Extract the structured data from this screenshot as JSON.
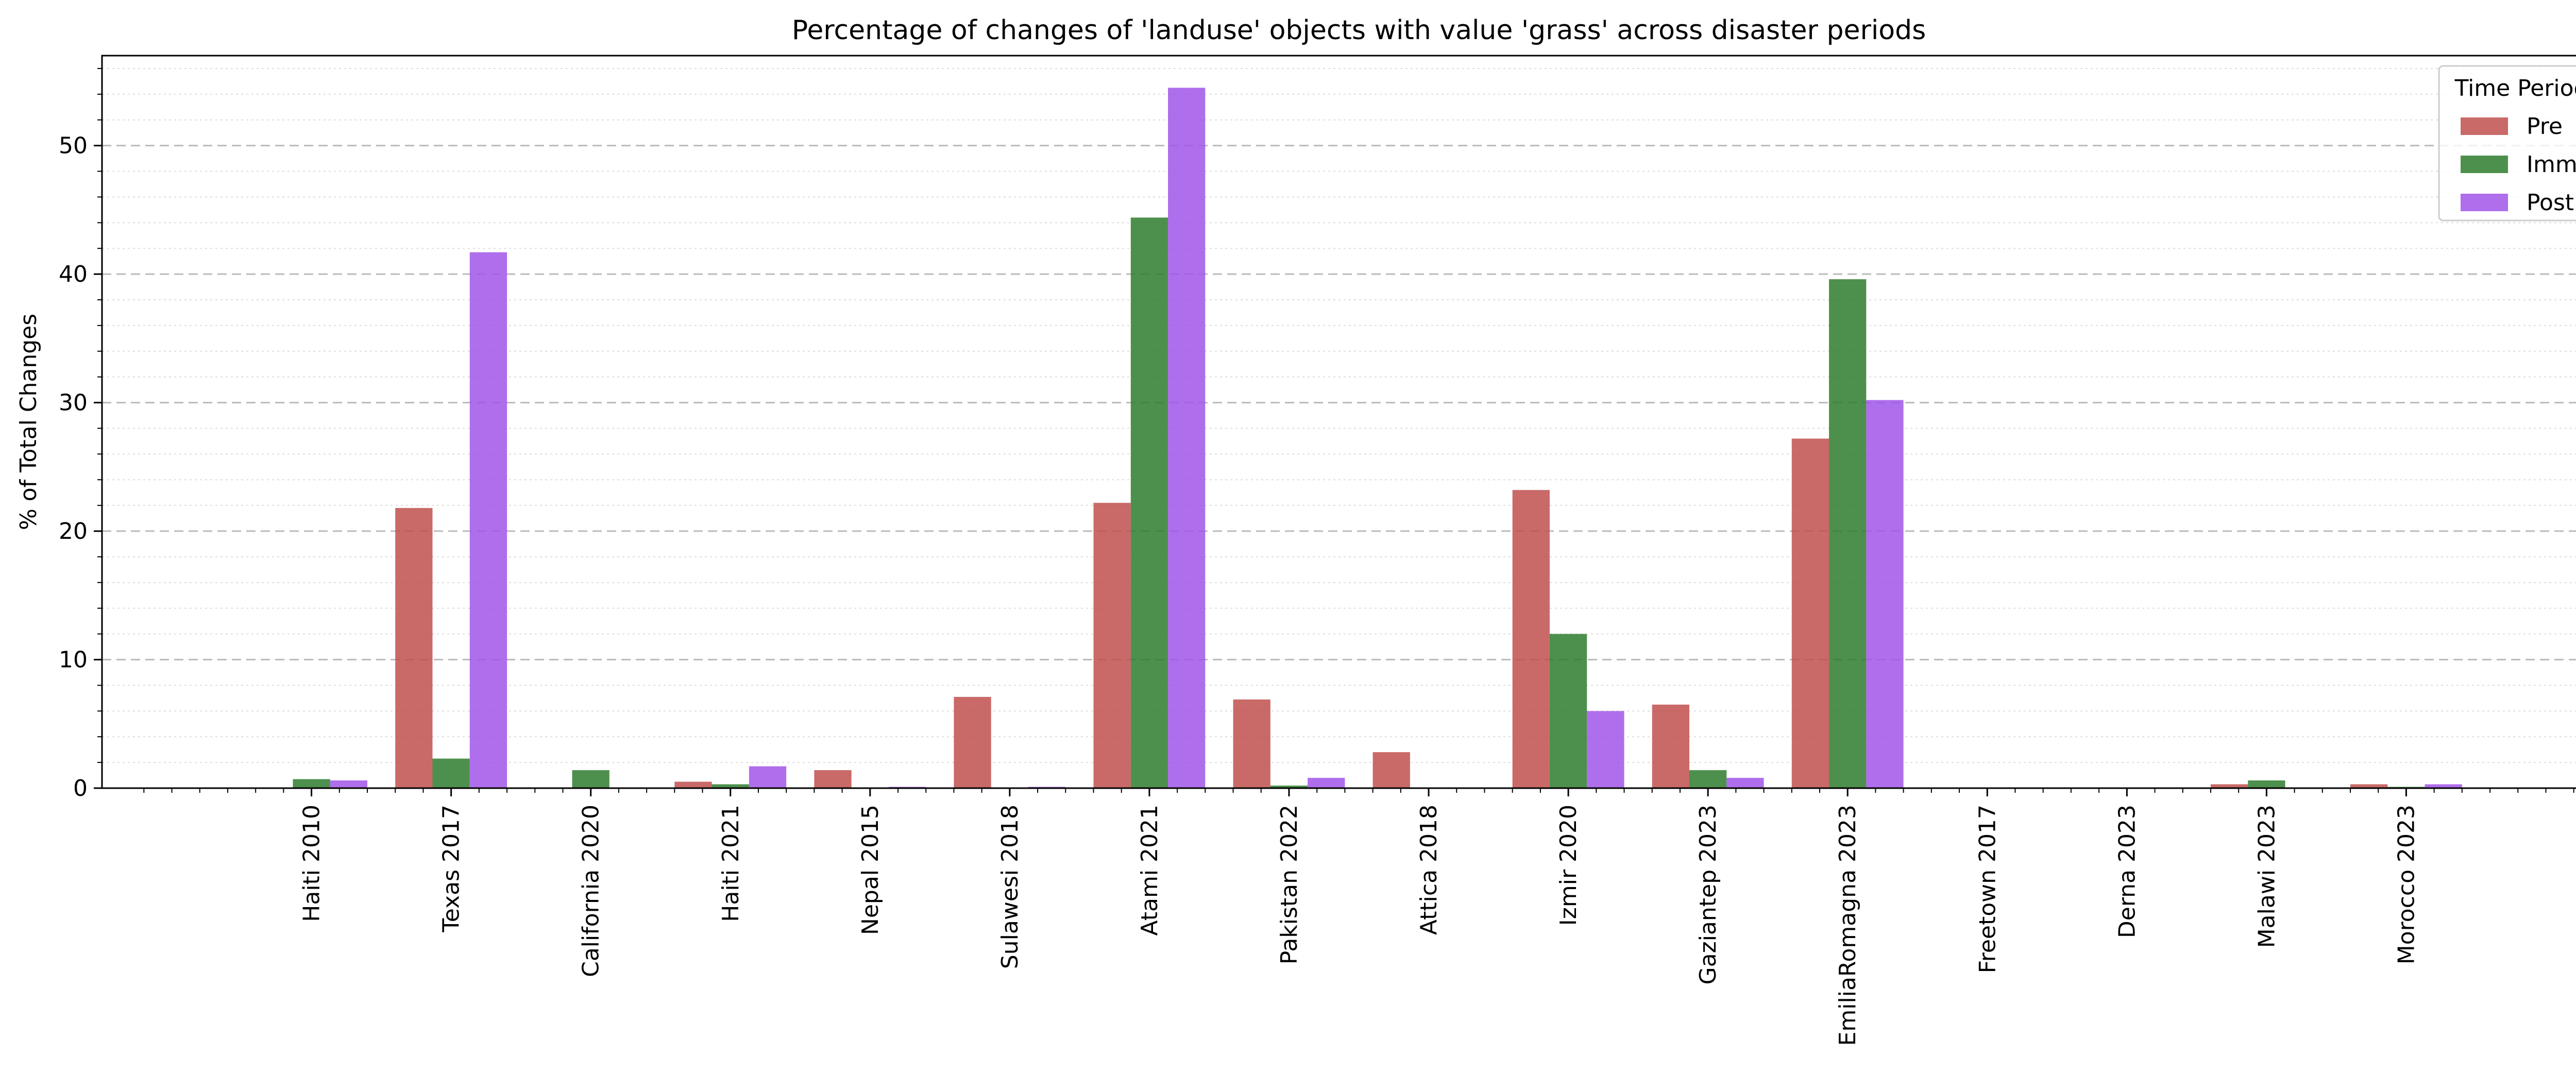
{
  "chart_data": {
    "type": "bar",
    "title": "Percentage of changes of 'landuse' objects with value 'grass' across disaster periods",
    "xlabel": "",
    "ylabel": "% of Total Changes",
    "ylim": [
      0,
      57
    ],
    "yticks": [
      0,
      10,
      20,
      30,
      40,
      50
    ],
    "grid": "horizontal dashed major, dotted minor",
    "categories": [
      "Haiti 2010",
      "Texas 2017",
      "California 2020",
      "Haiti 2021",
      "Nepal 2015",
      "Sulawesi 2018",
      "Atami 2021",
      "Pakistan 2022",
      "Attica 2018",
      "Izmir 2020",
      "Gaziantep 2023",
      "EmiliaRomagna 2023",
      "Freetown 2017",
      "Derna 2023",
      "Malawi 2023",
      "Morocco 2023"
    ],
    "legend": {
      "title": "Time Period",
      "position": "top-right"
    },
    "series": [
      {
        "name": "Pre",
        "color": "#c0504d",
        "values": [
          0,
          21.8,
          0,
          0.5,
          1.4,
          7.1,
          22.2,
          6.9,
          2.8,
          23.2,
          6.5,
          27.2,
          0,
          0,
          0.3,
          0.3
        ]
      },
      {
        "name": "Imm",
        "color": "#2e7d2e",
        "values": [
          0.7,
          2.3,
          1.4,
          0.3,
          0,
          0,
          44.4,
          0.2,
          0,
          12.0,
          1.4,
          39.6,
          0,
          0,
          0.6,
          0.1
        ]
      },
      {
        "name": "Post",
        "color": "#a155e8",
        "values": [
          0.6,
          41.7,
          0,
          1.7,
          0.1,
          0.1,
          54.5,
          0.8,
          0,
          6.0,
          0.8,
          30.2,
          0,
          0,
          0,
          0.3
        ]
      }
    ]
  }
}
